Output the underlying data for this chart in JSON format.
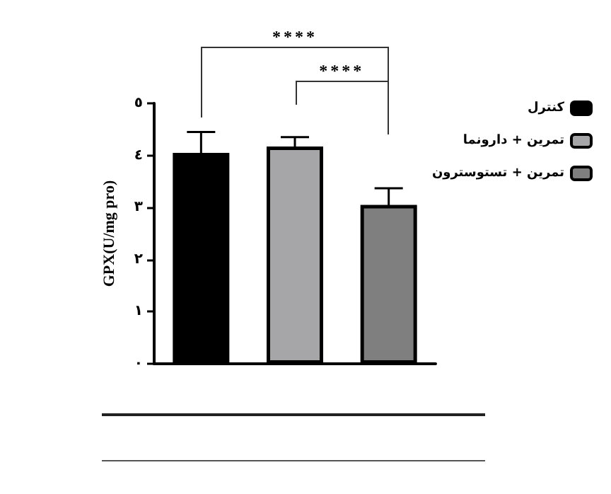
{
  "chart_data": {
    "type": "bar",
    "ylabel": "GPX(U/mg pro)",
    "categories": [
      null,
      null,
      null
    ],
    "series": [
      {
        "name": "کنترل",
        "color": "#000000",
        "values": [
          4.05,
          null,
          null
        ],
        "errors": [
          0.4,
          null,
          null
        ]
      },
      {
        "name": "تمرین + دارونما",
        "color": "#a6a6a8",
        "values": [
          null,
          4.17,
          null
        ],
        "errors": [
          null,
          0.18,
          null
        ]
      },
      {
        "name": "تمرین + تستوسترون",
        "color": "#7f7f7f",
        "values": [
          null,
          null,
          3.05
        ],
        "errors": [
          null,
          null,
          0.32
        ]
      }
    ],
    "ylim": [
      0,
      5
    ],
    "yticks": [
      {
        "value": 0,
        "label": "٠"
      },
      {
        "value": 1,
        "label": "١"
      },
      {
        "value": 2,
        "label": "٢"
      },
      {
        "value": 3,
        "label": "٣"
      },
      {
        "value": 4,
        "label": "٤"
      },
      {
        "value": 5,
        "label": "٥"
      }
    ],
    "annotations": [
      "****",
      "****"
    ],
    "legend": "top right",
    "grid": false
  }
}
